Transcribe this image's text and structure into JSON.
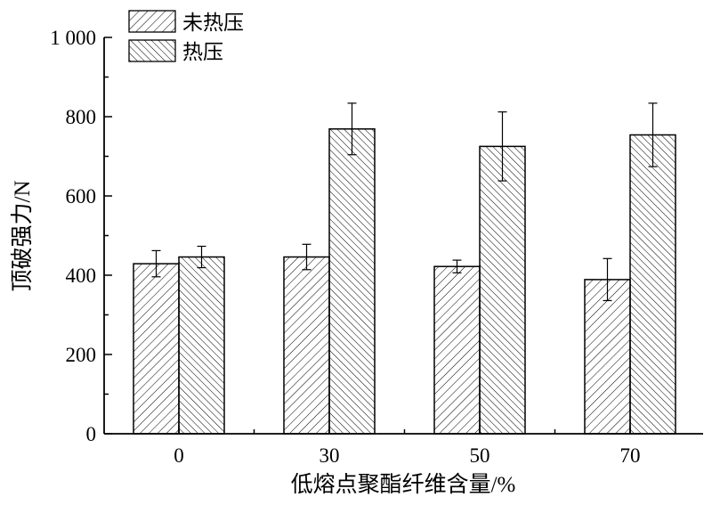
{
  "chart_data": {
    "type": "bar",
    "title": "",
    "xlabel": "低熔点聚酯纤维含量/%",
    "ylabel": "顶破强力/N",
    "categories": [
      "0",
      "30",
      "50",
      "70"
    ],
    "ylim": [
      0,
      1000
    ],
    "yticks": [
      0,
      200,
      400,
      600,
      800,
      1000
    ],
    "ytick_labels": [
      "0",
      "200",
      "400",
      "600",
      "800",
      "1 000"
    ],
    "grid": false,
    "legend_position": "top-left",
    "series": [
      {
        "name": "未热压",
        "pattern": "hatch-forward",
        "values": [
          429,
          446,
          422,
          389
        ],
        "errors": [
          33,
          32,
          16,
          53
        ]
      },
      {
        "name": "热压",
        "pattern": "hatch-back",
        "values": [
          446,
          769,
          725,
          754
        ],
        "errors": [
          27,
          65,
          87,
          80
        ]
      }
    ],
    "colors": {
      "stroke": "#000000",
      "fill": "#ffffff"
    }
  }
}
